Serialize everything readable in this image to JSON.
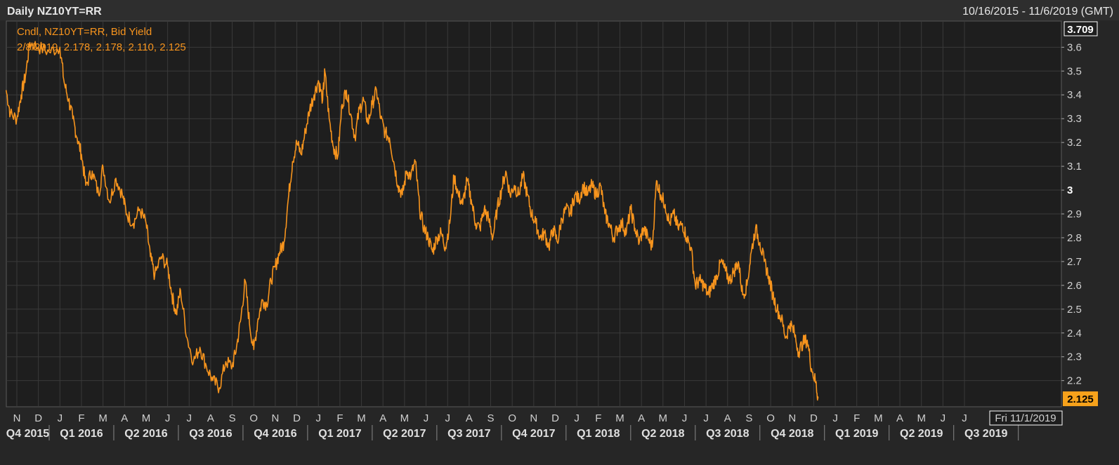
{
  "header": {
    "title": "Daily NZ10YT=RR",
    "date_range": "10/16/2015 - 11/6/2019 (GMT)"
  },
  "legend": {
    "line1": "Cndl, NZ10YT=RR, Bid Yield",
    "line2": "2/8/2019, 2.178, 2.178, 2.110, 2.125"
  },
  "badges": {
    "top_value": "3.709",
    "last_value": "2.125",
    "cursor_date": "Fri 11/1/2019"
  },
  "colors": {
    "background": "#262626",
    "plot_background": "#1e1e1e",
    "grid": "#3a3a3a",
    "series": "#f7941d",
    "last_badge": "#f7a21b"
  },
  "chart_data": {
    "type": "line",
    "title": "Daily NZ10YT=RR",
    "series_name": "Cndl, NZ10YT=RR, Bid Yield",
    "ylim": [
      2.09,
      3.71
    ],
    "y_ticks": [
      "2.2",
      "2.3",
      "2.4",
      "2.5",
      "2.6",
      "2.7",
      "2.8",
      "2.9",
      "3",
      "3.1",
      "3.2",
      "3.3",
      "3.4",
      "3.5",
      "3.6"
    ],
    "y_tick_values": [
      2.2,
      2.3,
      2.4,
      2.5,
      2.6,
      2.7,
      2.8,
      2.9,
      3.0,
      3.1,
      3.2,
      3.3,
      3.4,
      3.5,
      3.6
    ],
    "y_bold_tick": "3",
    "month_ticks": [
      "N",
      "D",
      "J",
      "F",
      "M",
      "A",
      "M",
      "J",
      "J",
      "A",
      "S",
      "O",
      "N",
      "D",
      "J",
      "F",
      "M",
      "A",
      "M",
      "J",
      "J",
      "A",
      "S",
      "O",
      "N",
      "D",
      "J",
      "F",
      "M",
      "A",
      "M",
      "J",
      "J",
      "A",
      "S",
      "O",
      "N",
      "D",
      "J",
      "F",
      "M",
      "A",
      "M",
      "J",
      "J"
    ],
    "quarters": [
      "Q4 2015",
      "Q1 2016",
      "Q2 2016",
      "Q3 2016",
      "Q4 2016",
      "Q1 2017",
      "Q2 2017",
      "Q3 2017",
      "Q4 2017",
      "Q1 2018",
      "Q2 2018",
      "Q3 2018",
      "Q4 2018",
      "Q1 2019",
      "Q2 2019",
      "Q3 2019"
    ],
    "x_start_month_index": -0.5,
    "x_end_month_index": 48.1,
    "month_index_note_free": true,
    "points": [
      [
        -0.5,
        3.42
      ],
      [
        -0.3,
        3.32
      ],
      [
        0.0,
        3.3
      ],
      [
        0.2,
        3.4
      ],
      [
        0.4,
        3.48
      ],
      [
        0.6,
        3.62
      ],
      [
        1.0,
        3.6
      ],
      [
        1.5,
        3.58
      ],
      [
        2.0,
        3.6
      ],
      [
        2.2,
        3.45
      ],
      [
        2.4,
        3.38
      ],
      [
        2.6,
        3.3
      ],
      [
        2.8,
        3.22
      ],
      [
        3.0,
        3.15
      ],
      [
        3.2,
        3.02
      ],
      [
        3.5,
        3.08
      ],
      [
        3.8,
        2.98
      ],
      [
        4.0,
        3.1
      ],
      [
        4.3,
        2.95
      ],
      [
        4.6,
        3.05
      ],
      [
        4.9,
        2.98
      ],
      [
        5.1,
        2.9
      ],
      [
        5.4,
        2.86
      ],
      [
        5.7,
        2.92
      ],
      [
        6.0,
        2.86
      ],
      [
        6.2,
        2.72
      ],
      [
        6.4,
        2.64
      ],
      [
        6.7,
        2.72
      ],
      [
        7.0,
        2.68
      ],
      [
        7.2,
        2.56
      ],
      [
        7.4,
        2.48
      ],
      [
        7.6,
        2.58
      ],
      [
        7.9,
        2.38
      ],
      [
        8.2,
        2.28
      ],
      [
        8.5,
        2.34
      ],
      [
        8.8,
        2.26
      ],
      [
        9.1,
        2.2
      ],
      [
        9.4,
        2.17
      ],
      [
        9.7,
        2.28
      ],
      [
        10.0,
        2.26
      ],
      [
        10.2,
        2.34
      ],
      [
        10.4,
        2.46
      ],
      [
        10.6,
        2.62
      ],
      [
        10.8,
        2.44
      ],
      [
        11.0,
        2.33
      ],
      [
        11.2,
        2.46
      ],
      [
        11.4,
        2.54
      ],
      [
        11.6,
        2.52
      ],
      [
        11.8,
        2.62
      ],
      [
        12.0,
        2.68
      ],
      [
        12.2,
        2.74
      ],
      [
        12.4,
        2.78
      ],
      [
        12.6,
        2.96
      ],
      [
        12.8,
        3.12
      ],
      [
        13.0,
        3.2
      ],
      [
        13.2,
        3.15
      ],
      [
        13.4,
        3.25
      ],
      [
        13.6,
        3.34
      ],
      [
        13.8,
        3.4
      ],
      [
        14.0,
        3.46
      ],
      [
        14.2,
        3.38
      ],
      [
        14.3,
        3.5
      ],
      [
        14.5,
        3.3
      ],
      [
        14.7,
        3.18
      ],
      [
        14.9,
        3.14
      ],
      [
        15.1,
        3.36
      ],
      [
        15.3,
        3.42
      ],
      [
        15.5,
        3.32
      ],
      [
        15.7,
        3.22
      ],
      [
        15.9,
        3.34
      ],
      [
        16.1,
        3.38
      ],
      [
        16.3,
        3.28
      ],
      [
        16.5,
        3.36
      ],
      [
        16.7,
        3.42
      ],
      [
        16.9,
        3.3
      ],
      [
        17.1,
        3.24
      ],
      [
        17.3,
        3.22
      ],
      [
        17.5,
        3.12
      ],
      [
        17.7,
        3.02
      ],
      [
        17.9,
        2.98
      ],
      [
        18.1,
        3.08
      ],
      [
        18.3,
        3.06
      ],
      [
        18.5,
        3.12
      ],
      [
        18.7,
        2.92
      ],
      [
        18.9,
        2.84
      ],
      [
        19.1,
        2.8
      ],
      [
        19.3,
        2.74
      ],
      [
        19.5,
        2.8
      ],
      [
        19.7,
        2.82
      ],
      [
        19.9,
        2.76
      ],
      [
        20.1,
        2.86
      ],
      [
        20.3,
        3.06
      ],
      [
        20.5,
        2.98
      ],
      [
        20.7,
        2.94
      ],
      [
        20.9,
        3.04
      ],
      [
        21.1,
        2.96
      ],
      [
        21.3,
        2.86
      ],
      [
        21.5,
        2.84
      ],
      [
        21.7,
        2.92
      ],
      [
        21.9,
        2.88
      ],
      [
        22.1,
        2.8
      ],
      [
        22.3,
        2.92
      ],
      [
        22.5,
        3.0
      ],
      [
        22.7,
        3.08
      ],
      [
        22.9,
        2.98
      ],
      [
        23.1,
        3.02
      ],
      [
        23.3,
        2.98
      ],
      [
        23.5,
        3.06
      ],
      [
        23.7,
        2.98
      ],
      [
        23.9,
        2.9
      ],
      [
        24.1,
        2.86
      ],
      [
        24.3,
        2.8
      ],
      [
        24.5,
        2.82
      ],
      [
        24.7,
        2.76
      ],
      [
        24.9,
        2.84
      ],
      [
        25.1,
        2.78
      ],
      [
        25.3,
        2.88
      ],
      [
        25.5,
        2.92
      ],
      [
        25.7,
        2.9
      ],
      [
        25.9,
        2.98
      ],
      [
        26.1,
        2.96
      ],
      [
        26.3,
        3.02
      ],
      [
        26.5,
        2.98
      ],
      [
        26.7,
        3.02
      ],
      [
        26.9,
        2.98
      ],
      [
        27.1,
        3.02
      ],
      [
        27.3,
        2.9
      ],
      [
        27.5,
        2.86
      ],
      [
        27.7,
        2.8
      ],
      [
        27.9,
        2.84
      ],
      [
        28.1,
        2.86
      ],
      [
        28.3,
        2.82
      ],
      [
        28.5,
        2.92
      ],
      [
        28.7,
        2.84
      ],
      [
        28.9,
        2.78
      ],
      [
        29.1,
        2.84
      ],
      [
        29.3,
        2.8
      ],
      [
        29.5,
        2.76
      ],
      [
        29.7,
        3.04
      ],
      [
        29.9,
        2.98
      ],
      [
        30.1,
        2.94
      ],
      [
        30.3,
        2.86
      ],
      [
        30.5,
        2.9
      ],
      [
        30.7,
        2.84
      ],
      [
        30.9,
        2.86
      ],
      [
        31.1,
        2.8
      ],
      [
        31.3,
        2.76
      ],
      [
        31.5,
        2.6
      ],
      [
        31.7,
        2.62
      ],
      [
        31.9,
        2.6
      ],
      [
        32.1,
        2.56
      ],
      [
        32.3,
        2.6
      ],
      [
        32.5,
        2.64
      ],
      [
        32.7,
        2.7
      ],
      [
        32.9,
        2.66
      ],
      [
        33.1,
        2.62
      ],
      [
        33.3,
        2.66
      ],
      [
        33.5,
        2.7
      ],
      [
        33.7,
        2.56
      ],
      [
        33.9,
        2.6
      ],
      [
        34.1,
        2.74
      ],
      [
        34.3,
        2.84
      ],
      [
        34.5,
        2.78
      ],
      [
        34.7,
        2.7
      ],
      [
        34.9,
        2.64
      ],
      [
        35.1,
        2.56
      ],
      [
        35.3,
        2.5
      ],
      [
        35.5,
        2.46
      ],
      [
        35.7,
        2.38
      ],
      [
        35.9,
        2.44
      ],
      [
        36.1,
        2.4
      ],
      [
        36.3,
        2.32
      ],
      [
        36.5,
        2.36
      ],
      [
        36.7,
        2.37
      ],
      [
        36.9,
        2.25
      ],
      [
        37.1,
        2.19
      ],
      [
        37.2,
        2.125
      ]
    ]
  }
}
